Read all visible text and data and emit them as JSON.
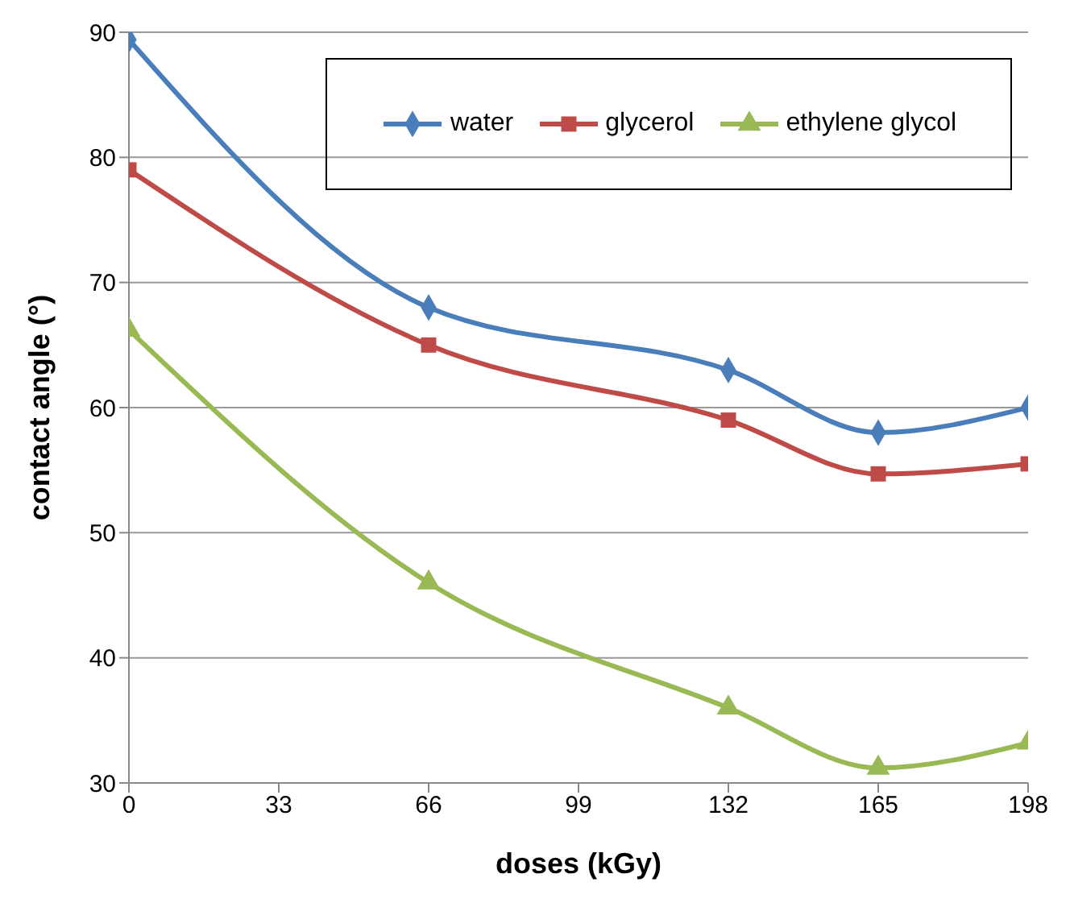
{
  "chart_data": {
    "type": "line",
    "xlabel": "doses (kGy)",
    "ylabel": "contact angle (°)",
    "x": [
      0,
      66,
      132,
      165,
      198
    ],
    "xlim": [
      0,
      198
    ],
    "xticks": [
      0,
      33,
      66,
      99,
      132,
      165,
      198
    ],
    "ylim": [
      30,
      90
    ],
    "yticks": [
      30,
      40,
      50,
      60,
      70,
      80,
      90
    ],
    "grid": "y",
    "legend": "top right",
    "series": [
      {
        "name": "water",
        "color": "#4a7ebb",
        "marker": "diamond",
        "values": [
          89.4,
          68,
          63,
          58,
          60
        ]
      },
      {
        "name": "glycerol",
        "color": "#be4b48",
        "marker": "square",
        "values": [
          79,
          65,
          59,
          54.7,
          55.5
        ]
      },
      {
        "name": "ethylene glycol",
        "color": "#98b954",
        "marker": "triangle",
        "values": [
          66.2,
          46,
          36,
          31.2,
          33.2
        ]
      }
    ]
  }
}
